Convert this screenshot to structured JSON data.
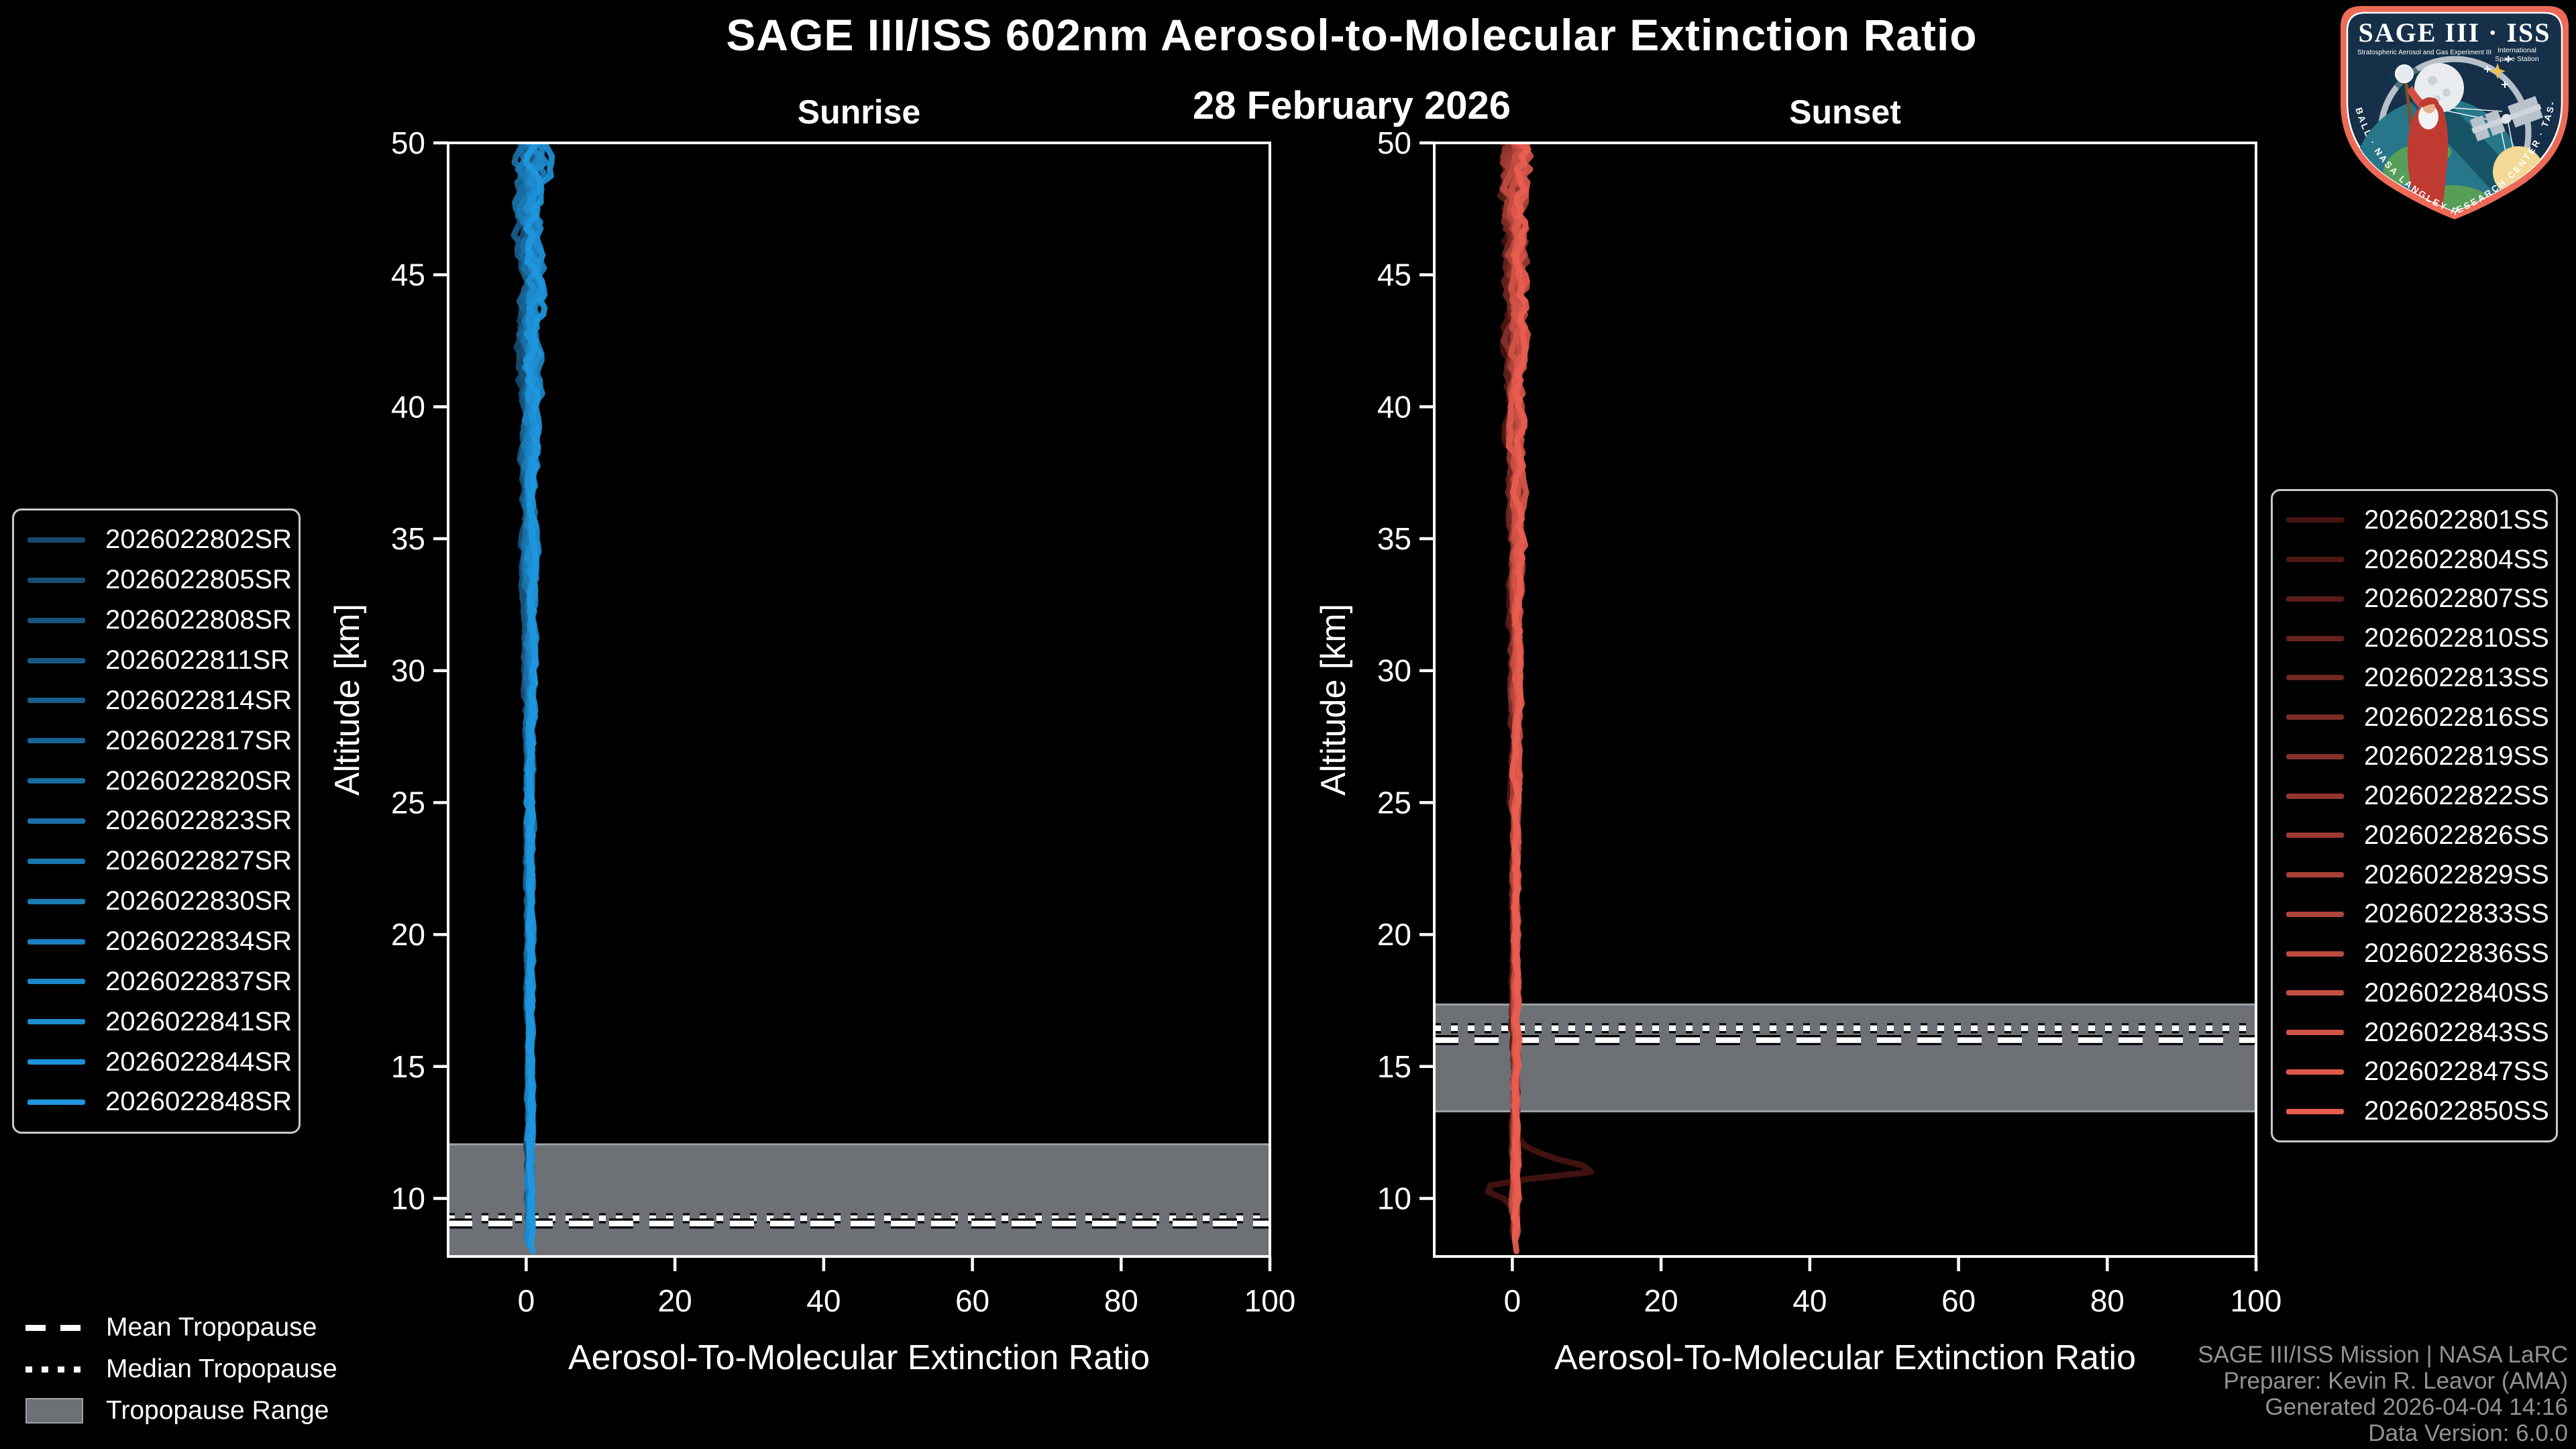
{
  "header": {
    "title": "SAGE III/ISS 602nm Aerosol-to-Molecular Extinction Ratio",
    "date": "28 February 2026"
  },
  "chart_data": [
    {
      "type": "line",
      "panel": "sunrise",
      "title": "Sunrise",
      "xlabel": "Aerosol-To-Molecular Extinction Ratio",
      "ylabel": "Altitude [km]",
      "xlim": [
        -10.5,
        100
      ],
      "ylim": [
        7.8,
        50
      ],
      "xticks": [
        0,
        20,
        40,
        60,
        80,
        100
      ],
      "yticks": [
        50,
        45,
        40,
        35,
        30,
        25,
        20,
        15,
        10
      ],
      "grid": false,
      "legend_position": "outside-left",
      "series": [
        "2026022802SR",
        "2026022805SR",
        "2026022808SR",
        "2026022811SR",
        "2026022814SR",
        "2026022817SR",
        "2026022820SR",
        "2026022823SR",
        "2026022827SR",
        "2026022830SR",
        "2026022834SR",
        "2026022837SR",
        "2026022841SR",
        "2026022844SR",
        "2026022848SR"
      ],
      "color_gradient": [
        "#16486B",
        "#1E97E0"
      ],
      "profile": {
        "center": 0.5,
        "jitter_amplitude_by_altitude": [
          [
            50,
            2.6
          ],
          [
            46,
            2.0
          ],
          [
            42,
            1.5
          ],
          [
            38,
            1.1
          ],
          [
            34,
            0.9
          ],
          [
            30,
            0.8
          ],
          [
            25,
            0.65
          ],
          [
            20,
            0.55
          ],
          [
            15,
            0.5
          ],
          [
            10,
            0.55
          ],
          [
            7.8,
            0.6
          ]
        ],
        "note": "all 15 profiles cluster near extinction ratio 0 from 8 to 50 km with small jitter; spread widens above 40 km"
      },
      "tropopause": {
        "mean_km": 9.05,
        "median_km": 9.25,
        "range_km": [
          7.8,
          12.05
        ]
      }
    },
    {
      "type": "line",
      "panel": "sunset",
      "title": "Sunset",
      "xlabel": "Aerosol-To-Molecular Extinction Ratio",
      "ylabel": "Altitude [km]",
      "xlim": [
        -10.5,
        100
      ],
      "ylim": [
        7.8,
        50
      ],
      "xticks": [
        0,
        20,
        40,
        60,
        80,
        100
      ],
      "yticks": [
        50,
        45,
        40,
        35,
        30,
        25,
        20,
        15,
        10
      ],
      "grid": false,
      "legend_position": "outside-right",
      "series": [
        "2026022801SS",
        "2026022804SS",
        "2026022807SS",
        "2026022810SS",
        "2026022813SS",
        "2026022816SS",
        "2026022819SS",
        "2026022822SS",
        "2026022826SS",
        "2026022829SS",
        "2026022833SS",
        "2026022836SS",
        "2026022840SS",
        "2026022843SS",
        "2026022847SS",
        "2026022850SS"
      ],
      "color_gradient": [
        "#451311",
        "#E85D4F"
      ],
      "profile": {
        "center": 0.4,
        "jitter_amplitude_by_altitude": [
          [
            50,
            2.6
          ],
          [
            46,
            2.0
          ],
          [
            42,
            1.5
          ],
          [
            38,
            1.1
          ],
          [
            34,
            0.9
          ],
          [
            30,
            0.8
          ],
          [
            25,
            0.65
          ],
          [
            20,
            0.55
          ],
          [
            15,
            0.5
          ],
          [
            10,
            0.55
          ],
          [
            7.8,
            0.6
          ]
        ],
        "note": "all 16 profiles cluster near extinction ratio 0; darkest profile (2026022801SS) has a spike near 11 km"
      },
      "anomaly": {
        "series": "2026022801SS",
        "points": [
          [
            12.4,
            0.5
          ],
          [
            12.0,
            1.6
          ],
          [
            11.6,
            4.5
          ],
          [
            11.25,
            9.5
          ],
          [
            11.05,
            12.2
          ],
          [
            10.9,
            7.5
          ],
          [
            10.72,
            1.5
          ],
          [
            10.55,
            -2.2
          ],
          [
            10.4,
            -4.4
          ],
          [
            10.22,
            -3.0
          ],
          [
            10.0,
            -1.2
          ],
          [
            9.75,
            -0.3
          ],
          [
            9.5,
            0.2
          ]
        ]
      },
      "tropopause": {
        "mean_km": 16.0,
        "median_km": 16.45,
        "range_km": [
          13.3,
          17.35
        ]
      }
    }
  ],
  "tropopause_legend": {
    "mean_label": "Mean Tropopause",
    "median_label": "Median Tropopause",
    "range_label": "Tropopause Range"
  },
  "attribution": {
    "line1": "SAGE III/ISS Mission | NASA LaRC",
    "line2": "Preparer: Kevin R. Leavor (AMA)",
    "line3": "Generated 2026-04-04 14:16",
    "line4": "Data Version: 6.0.0"
  },
  "logo": {
    "title": "SAGE III · ISS",
    "subtitle_left": "Stratospheric Aerosol and Gas Experiment III",
    "subtitle_right_line1": "International",
    "subtitle_right_line2": "Space Station",
    "ring_text": "BALL · NASA LANGLEY RESEARCH CENTER · TAS-I · ESA"
  },
  "colors": {
    "background": "#000000",
    "axis": "#FFFFFF",
    "tropopause_band": "#6D7075",
    "tropopause_band_edge": "#9EA3A8",
    "tropopause_lines": "#FFFFFF",
    "attribution_text": "#8F9396",
    "legend_border": "#C9C9C9",
    "logo_border": "#ED6A57",
    "logo_background": "#16304A"
  }
}
